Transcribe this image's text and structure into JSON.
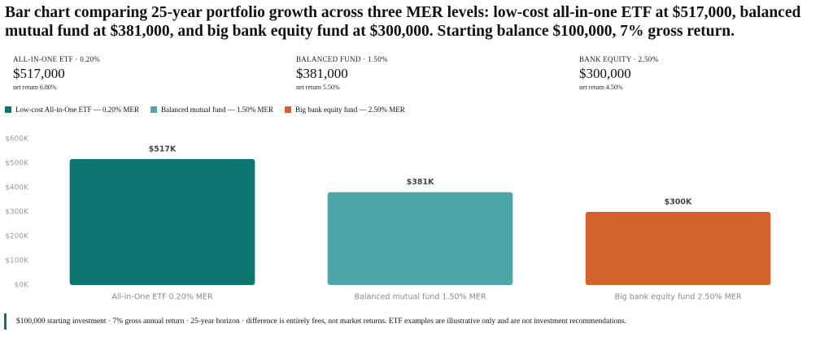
{
  "title": "Bar chart comparing 25-year portfolio growth across three MER levels: low-cost all-in-one ETF at $517,000, balanced mutual fund at $381,000, and big bank equity fund at $300,000. Starting balance $100,000, 7% gross return.",
  "summary": [
    {
      "label": "ALL-IN-ONE ETF · 0.20%",
      "value": "$517,000",
      "note": "net return 6.80%"
    },
    {
      "label": "BALANCED FUND · 1.50%",
      "value": "$381,000",
      "note": "net return 5.50%"
    },
    {
      "label": "BANK EQUITY · 2.50%",
      "value": "$300,000",
      "note": "net return 4.50%"
    }
  ],
  "chart_data": {
    "type": "bar",
    "legend": [
      "Low-cost All-in-One ETF — 0.20% MER",
      "Balanced mutual fund — 1.50% MER",
      "Big bank equity fund — 2.50% MER"
    ],
    "categories": [
      "All-in-One ETF 0.20% MER",
      "Balanced mutual fund 1.50% MER",
      "Big bank equity fund 2.50% MER"
    ],
    "values": [
      517000,
      381000,
      300000
    ],
    "value_labels": [
      "$517K",
      "$381K",
      "$300K"
    ],
    "colors": [
      "#0e7470",
      "#4da6a8",
      "#d4622b"
    ],
    "ylim": [
      0,
      600000
    ],
    "yticks": [
      {
        "value": 0,
        "label": "$0K"
      },
      {
        "value": 100000,
        "label": "$100K"
      },
      {
        "value": 200000,
        "label": "$200K"
      },
      {
        "value": 300000,
        "label": "$300K"
      },
      {
        "value": 400000,
        "label": "$400K"
      },
      {
        "value": 500000,
        "label": "$500K"
      },
      {
        "value": 600000,
        "label": "$600K"
      }
    ],
    "grid": false
  },
  "footnote": "$100,000 starting investment · 7% gross annual return · 25-year horizon · difference is entirely fees, not market returns. ETF examples are illustrative only and are not investment recommendations."
}
